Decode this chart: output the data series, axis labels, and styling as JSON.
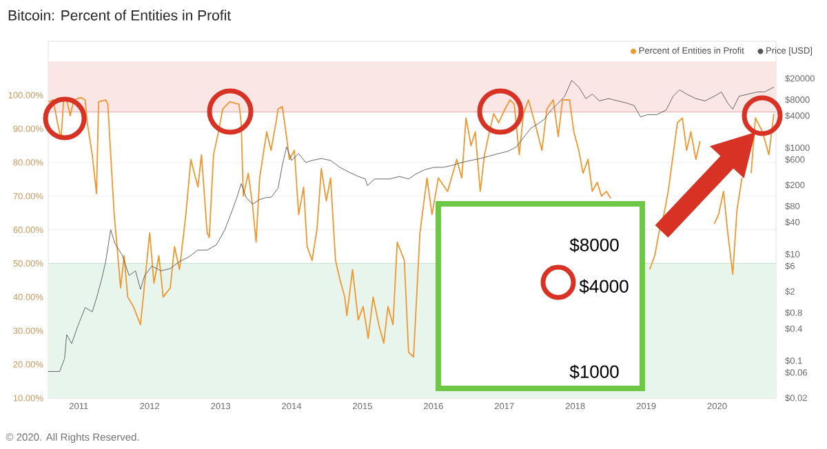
{
  "chart_data": {
    "type": "line",
    "title": "Bitcoin: Percent of Entities in Profit",
    "series": [
      {
        "name": "Percent of Entities in Profit",
        "color": "#f0962e",
        "x": [
          2010.57,
          2010.64,
          2010.7,
          2010.75,
          2010.79,
          2010.83,
          2010.88,
          2010.93,
          2011.03,
          2011.09,
          2011.12,
          2011.19,
          2011.25,
          2011.28,
          2011.38,
          2011.41,
          2011.45,
          2011.5,
          2011.54,
          2011.59,
          2011.64,
          2011.69,
          2011.77,
          2011.87,
          2011.91,
          2012.0,
          2012.06,
          2012.13,
          2012.19,
          2012.29,
          2012.35,
          2012.42,
          2012.51,
          2012.58,
          2012.68,
          2012.73,
          2012.81,
          2012.84,
          2012.9,
          2012.97,
          2013.03,
          2013.13,
          2013.26,
          2013.29,
          2013.32,
          2013.39,
          2013.45,
          2013.5,
          2013.55,
          2013.65,
          2013.71,
          2013.78,
          2013.81,
          2013.87,
          2013.92,
          2013.97,
          2014.04,
          2014.1,
          2014.17,
          2014.22,
          2014.29,
          2014.36,
          2014.42,
          2014.49,
          2014.55,
          2014.62,
          2014.68,
          2014.75,
          2014.78,
          2014.86,
          2014.94,
          2015.01,
          2015.08,
          2015.15,
          2015.23,
          2015.3,
          2015.36,
          2015.43,
          2015.49,
          2015.59,
          2015.65,
          2015.72,
          2015.81,
          2015.91,
          2015.98,
          2016.07,
          2016.2,
          2016.33,
          2016.4,
          2016.46,
          2016.53,
          2016.59,
          2016.66,
          2016.72,
          2016.79,
          2016.85,
          2016.92,
          2017.01,
          2017.08,
          2017.14,
          2017.21,
          2017.27,
          2017.34,
          2017.43,
          2017.53,
          2017.6,
          2017.69,
          2017.76,
          2017.82,
          2017.92,
          2017.98,
          2018.05,
          2018.11,
          2018.18,
          2018.24,
          2018.31,
          2018.37,
          2018.44,
          2018.5,
          2018.55,
          2019.05,
          2019.12,
          2019.18,
          2019.25,
          2019.31,
          2019.38,
          2019.44,
          2019.51,
          2019.57,
          2019.63,
          2019.7,
          2019.76,
          2019.83,
          2019.89,
          2019.96,
          2020.02,
          2020.09,
          2020.15,
          2020.22,
          2020.28,
          2020.35,
          2020.41,
          2020.48,
          2020.54,
          2020.64,
          2020.73,
          2020.8
        ],
        "values": [
          98.0,
          98.6,
          91.8,
          87.0,
          99.3,
          98.6,
          93.9,
          98.6,
          99.3,
          98.6,
          91.8,
          82.3,
          70.7,
          98.0,
          98.6,
          97.3,
          82.3,
          64.5,
          55.0,
          42.7,
          52.3,
          40.0,
          37.2,
          31.8,
          40.0,
          59.1,
          44.1,
          52.3,
          40.0,
          42.7,
          55.0,
          48.2,
          64.5,
          80.9,
          72.7,
          82.3,
          59.1,
          57.7,
          82.3,
          89.1,
          95.9,
          98.0,
          97.3,
          91.8,
          70.0,
          76.8,
          67.3,
          56.3,
          75.4,
          89.1,
          83.6,
          91.8,
          95.9,
          96.6,
          89.1,
          80.9,
          83.6,
          64.5,
          72.7,
          55.0,
          50.9,
          60.4,
          78.2,
          68.6,
          75.4,
          50.9,
          45.4,
          40.0,
          34.5,
          48.2,
          33.2,
          37.2,
          27.7,
          40.0,
          31.8,
          26.3,
          37.2,
          31.8,
          56.3,
          50.9,
          23.6,
          22.2,
          59.1,
          75.4,
          64.5,
          75.4,
          71.4,
          80.9,
          75.4,
          93.2,
          85.0,
          89.1,
          71.4,
          82.3,
          89.1,
          94.5,
          91.8,
          95.9,
          98.6,
          97.3,
          82.3,
          94.5,
          98.6,
          91.8,
          83.6,
          95.9,
          98.6,
          87.7,
          98.6,
          98.6,
          89.1,
          83.6,
          76.8,
          80.9,
          71.4,
          74.1,
          70.0,
          71.4,
          69.3,
          null,
          48.2,
          52.3,
          59.1,
          64.5,
          71.4,
          82.3,
          91.8,
          93.2,
          83.6,
          89.1,
          80.9,
          86.4,
          null,
          null,
          61.8,
          64.5,
          71.4,
          59.1,
          46.8,
          65.9,
          75.4,
          null,
          76.8,
          93.2,
          89.1,
          82.3,
          94.5
        ]
      },
      {
        "name": "Price [USD]",
        "color": "#555555",
        "axis": "y2",
        "x": [
          2010.57,
          2010.73,
          2010.8,
          2010.83,
          2010.9,
          2010.99,
          2011.09,
          2011.19,
          2011.25,
          2011.32,
          2011.38,
          2011.45,
          2011.51,
          2011.61,
          2011.71,
          2011.8,
          2011.87,
          2011.93,
          2012.03,
          2012.16,
          2012.29,
          2012.42,
          2012.55,
          2012.68,
          2012.81,
          2012.94,
          2013.06,
          2013.16,
          2013.23,
          2013.29,
          2013.36,
          2013.45,
          2013.55,
          2013.65,
          2013.71,
          2013.81,
          2013.87,
          2013.93,
          2014.0,
          2014.1,
          2014.2,
          2014.29,
          2014.42,
          2014.55,
          2014.68,
          2014.81,
          2014.94,
          2015.04,
          2015.07,
          2015.17,
          2015.3,
          2015.39,
          2015.52,
          2015.65,
          2015.75,
          2015.88,
          2016.01,
          2016.14,
          2016.27,
          2016.4,
          2016.53,
          2016.66,
          2016.79,
          2016.92,
          2017.05,
          2017.17,
          2017.27,
          2017.37,
          2017.47,
          2017.56,
          2017.66,
          2017.76,
          2017.85,
          2017.95,
          2018.05,
          2018.15,
          2018.24,
          2018.34,
          2018.47,
          2018.6,
          2018.73,
          2018.83,
          2018.92,
          2019.02,
          2019.15,
          2019.28,
          2019.38,
          2019.47,
          2019.57,
          2019.7,
          2019.83,
          2019.96,
          2020.06,
          2020.15,
          2020.22,
          2020.31,
          2020.44,
          2020.57,
          2020.67,
          2020.8
        ],
        "values": [
          0.063,
          0.063,
          0.11,
          0.31,
          0.21,
          0.46,
          1.0,
          0.83,
          1.5,
          3.3,
          7.3,
          29,
          16,
          9.8,
          4.0,
          4.9,
          2.2,
          4.0,
          6.0,
          4.9,
          5.4,
          7.3,
          8.9,
          12,
          12,
          15,
          29,
          65,
          117,
          213,
          117,
          87,
          107,
          117,
          117,
          174,
          470,
          1040,
          580,
          780,
          530,
          580,
          630,
          580,
          430,
          350,
          290,
          260,
          195,
          260,
          260,
          260,
          290,
          260,
          320,
          390,
          430,
          430,
          470,
          530,
          580,
          630,
          700,
          780,
          860,
          1040,
          1550,
          2300,
          2800,
          3400,
          5100,
          6900,
          9300,
          18500,
          13800,
          8400,
          10200,
          7600,
          8400,
          7600,
          6900,
          6200,
          3800,
          4200,
          4200,
          5100,
          9300,
          12300,
          10200,
          8400,
          7600,
          9300,
          11200,
          6900,
          5300,
          9300,
          10200,
          11200,
          11200,
          13800
        ]
      }
    ],
    "xlim": [
      2010.57,
      2020.83
    ],
    "xticks": [
      2011,
      2012,
      2013,
      2014,
      2015,
      2016,
      2017,
      2018,
      2019,
      2020
    ],
    "ylim": [
      10,
      116
    ],
    "yticks": [
      {
        "value": 10,
        "label": "10.00%"
      },
      {
        "value": 20,
        "label": "20.00%"
      },
      {
        "value": 30,
        "label": "30.00%"
      },
      {
        "value": 40,
        "label": "40.00%"
      },
      {
        "value": 50,
        "label": "50.00%"
      },
      {
        "value": 60,
        "label": "60.00%"
      },
      {
        "value": 70,
        "label": "70.00%"
      },
      {
        "value": 80,
        "label": "80.00%"
      },
      {
        "value": 90,
        "label": "90.00%"
      },
      {
        "value": 100,
        "label": "100.00%"
      }
    ],
    "y2lim": [
      0.02,
      100000
    ],
    "y2ticks": [
      {
        "value": 20000,
        "label": "$20000"
      },
      {
        "value": 8000,
        "label": "$8000"
      },
      {
        "value": 4000,
        "label": "$4000"
      },
      {
        "value": 1000,
        "label": "$1000"
      },
      {
        "value": 600,
        "label": "$600"
      },
      {
        "value": 200,
        "label": "$200"
      },
      {
        "value": 80,
        "label": "$80"
      },
      {
        "value": 40,
        "label": "$40"
      },
      {
        "value": 10,
        "label": "$10"
      },
      {
        "value": 6,
        "label": "$6"
      },
      {
        "value": 2,
        "label": "$2"
      },
      {
        "value": 0.8,
        "label": "$0.8"
      },
      {
        "value": 0.4,
        "label": "$0.4"
      },
      {
        "value": 0.1,
        "label": "$0.1"
      },
      {
        "value": 0.06,
        "label": "$0.06"
      },
      {
        "value": 0.02,
        "label": "$0.02"
      }
    ],
    "log": "y2",
    "grid": "y",
    "legend": "top right",
    "bands": [
      {
        "axis": "y",
        "from": 95,
        "to": 110,
        "color": "#fbe6e6"
      },
      {
        "axis": "y",
        "from": 10,
        "to": 50,
        "color": "#e8f5ed"
      }
    ],
    "ref_lines": [
      {
        "axis": "y",
        "value": 95,
        "color": "#e3b3b3"
      },
      {
        "axis": "y",
        "value": 50,
        "color": "#c3e2cf"
      }
    ],
    "annotations": [
      "© 2020. All Rights Reserved.",
      "$8000",
      "$4000",
      "$1000"
    ]
  }
}
